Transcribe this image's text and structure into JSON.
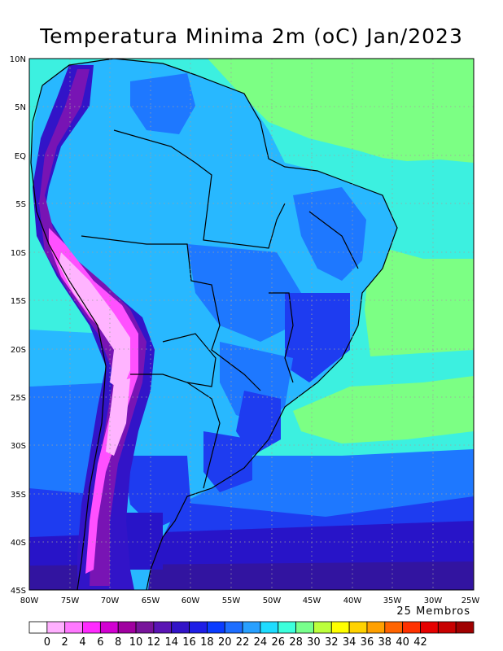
{
  "title": "Temperatura Minima 2m (oC) Jan/2023",
  "members_label": "25 Membros",
  "lat_labels": [
    "10N",
    "5N",
    "EQ",
    "5S",
    "10S",
    "15S",
    "20S",
    "25S",
    "30S",
    "35S",
    "40S",
    "45S"
  ],
  "lon_labels": [
    "80W",
    "75W",
    "70W",
    "65W",
    "60W",
    "55W",
    "50W",
    "45W",
    "40W",
    "35W",
    "30W",
    "25W"
  ],
  "colorbar": {
    "colors": [
      "#ffffff",
      "#ffb0ff",
      "#ff78ff",
      "#ff2aff",
      "#d200d2",
      "#a000a0",
      "#78149b",
      "#5a14b4",
      "#3214c8",
      "#1e1ee6",
      "#0a3cff",
      "#1e6eff",
      "#28a0ff",
      "#1edcff",
      "#3cffdc",
      "#78ff8c",
      "#bcff3c",
      "#ffff00",
      "#ffd200",
      "#ffa000",
      "#ff6400",
      "#ff3200",
      "#e60000",
      "#c80000",
      "#a00000"
    ],
    "labels": [
      "0",
      "2",
      "4",
      "6",
      "8",
      "10",
      "12",
      "14",
      "16",
      "18",
      "20",
      "22",
      "24",
      "26",
      "28",
      "30",
      "32",
      "34",
      "36",
      "38",
      "40",
      "42"
    ]
  },
  "legend_colors": {
    "sea_green": "#7cff84",
    "cyan": "#3cf0e0",
    "light_blue": "#28b8ff",
    "mid_blue": "#1e78ff",
    "deep_blue": "#1e3cf0",
    "indigo": "#2814c8",
    "purple": "#7814b4",
    "magenta": "#ff50ff",
    "pink": "#ffb4ff"
  }
}
